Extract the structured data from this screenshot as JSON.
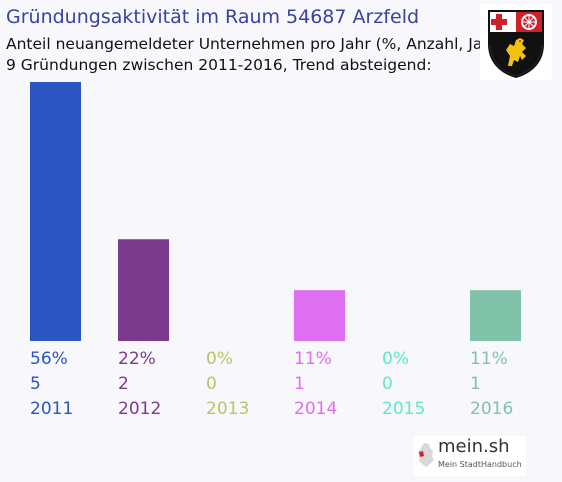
{
  "header": {
    "title": "Gründungsaktivität im Raum 54687 Arzfeld",
    "subtitle_line1": "Anteil neuangemeldeter Unternehmen pro Jahr (%, Anzahl, Jahr)",
    "subtitle_line2": "9 Gründungen zwischen 2011-2016, Trend absteigend:"
  },
  "branding": {
    "name": "mein.sh",
    "tagline": "Mein StadtHandbuch",
    "coat_of_arms_icon": "rheinland-pfalz-coat-of-arms-icon",
    "map_icon": "germany-map-icon"
  },
  "chart_data": {
    "type": "bar",
    "categories": [
      "2011",
      "2012",
      "2013",
      "2014",
      "2015",
      "2016"
    ],
    "values": [
      56,
      22,
      0,
      11,
      0,
      11
    ],
    "value_labels": [
      "56%",
      "22%",
      "0%",
      "11%",
      "0%",
      "11%"
    ],
    "counts": [
      "5",
      "2",
      "0",
      "1",
      "0",
      "1"
    ],
    "colors": [
      "#2b55c3",
      "#7b3b8d",
      "#b8c46a",
      "#df6ff1",
      "#5fe8c8",
      "#80c2aa"
    ],
    "ylim": [
      0,
      56
    ]
  }
}
